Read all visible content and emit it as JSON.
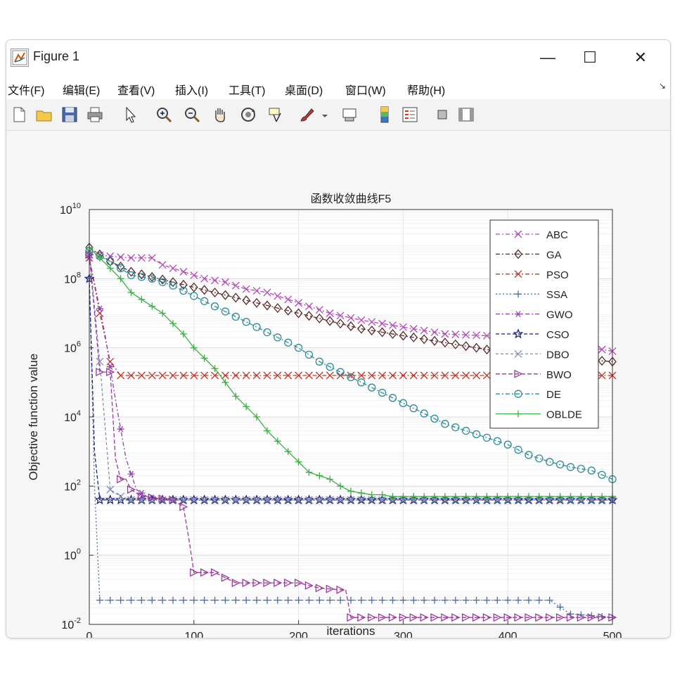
{
  "window": {
    "title": "Figure 1",
    "controls": {
      "minimize": "—",
      "maximize": "☐",
      "close": "✕"
    }
  },
  "menu": [
    {
      "label": "文件(F)"
    },
    {
      "label": "编辑(E)"
    },
    {
      "label": "查看(V)"
    },
    {
      "label": "插入(I)"
    },
    {
      "label": "工具(T)"
    },
    {
      "label": "桌面(D)"
    },
    {
      "label": "窗口(W)"
    },
    {
      "label": "帮助(H)"
    }
  ],
  "toolbar": [
    {
      "icon": "new-figure-icon"
    },
    {
      "icon": "open-file-icon"
    },
    {
      "icon": "save-icon"
    },
    {
      "icon": "print-icon"
    },
    {
      "icon": "pointer-icon"
    },
    {
      "icon": "zoom-in-icon"
    },
    {
      "icon": "zoom-out-icon"
    },
    {
      "icon": "pan-hand-icon"
    },
    {
      "icon": "rotate-3d-icon"
    },
    {
      "icon": "data-cursor-icon"
    },
    {
      "icon": "brush-icon"
    },
    {
      "icon": "link-plot-icon"
    },
    {
      "icon": "colorbar-icon"
    },
    {
      "icon": "legend-icon"
    },
    {
      "icon": "hide-plot-tools-icon"
    },
    {
      "icon": "show-plot-tools-icon"
    }
  ],
  "chart_data": {
    "type": "line",
    "title": "函数收敛曲线F5",
    "xlabel": "iterations",
    "ylabel": "Objective function value",
    "xlim": [
      0,
      500
    ],
    "ylim_log10": [
      -2,
      10
    ],
    "y_scale": "log",
    "xticks": [
      "0",
      "100",
      "200",
      "300",
      "400",
      "500"
    ],
    "yticks": [
      {
        "base": "10",
        "exp": "10"
      },
      {
        "base": "10",
        "exp": "8"
      },
      {
        "base": "10",
        "exp": "6"
      },
      {
        "base": "10",
        "exp": "4"
      },
      {
        "base": "10",
        "exp": "2"
      },
      {
        "base": "10",
        "exp": "0"
      },
      {
        "base": "10",
        "exp": "-2"
      }
    ],
    "grid": true,
    "legend_position": "top-right",
    "series": [
      {
        "name": "ABC",
        "color": "#b24bb6",
        "dash": "6,3,2,3",
        "marker": "x",
        "x": [
          0,
          20,
          40,
          60,
          70,
          90,
          110,
          130,
          150,
          170,
          190,
          210,
          230,
          260,
          300,
          340,
          380,
          420,
          460,
          500
        ],
        "log10": [
          8.7,
          8.65,
          8.6,
          8.6,
          8.4,
          8.2,
          8.0,
          7.9,
          7.7,
          7.6,
          7.4,
          7.2,
          7.0,
          6.8,
          6.6,
          6.4,
          6.35,
          6.3,
          6.1,
          5.9
        ]
      },
      {
        "name": "GA",
        "color": "#5a2a2a",
        "dash": "6,3,2,3",
        "marker": "diamond",
        "x": [
          0,
          20,
          40,
          60,
          80,
          100,
          120,
          140,
          160,
          180,
          200,
          220,
          240,
          260,
          280,
          300,
          320,
          340,
          360,
          380,
          400,
          420,
          440,
          460,
          480,
          500
        ],
        "log10": [
          8.9,
          8.5,
          8.2,
          8.05,
          7.9,
          7.75,
          7.6,
          7.45,
          7.3,
          7.15,
          7.0,
          6.85,
          6.7,
          6.55,
          6.45,
          6.35,
          6.25,
          6.15,
          6.05,
          5.95,
          5.85,
          5.8,
          5.75,
          5.7,
          5.65,
          5.6
        ]
      },
      {
        "name": "PSO",
        "color": "#c0392b",
        "dash": "6,3,2,3",
        "marker": "x",
        "x": [
          0,
          10,
          20,
          30,
          100,
          200,
          300,
          400,
          500
        ],
        "log10": [
          8.6,
          7.0,
          5.6,
          5.2,
          5.2,
          5.2,
          5.2,
          5.2,
          5.2
        ]
      },
      {
        "name": "SSA",
        "color": "#4a6fa5",
        "dash": "2,3",
        "marker": "plus",
        "x": [
          0,
          5,
          10,
          100,
          200,
          300,
          400,
          440,
          460,
          500
        ],
        "log10": [
          8.0,
          2.0,
          -1.3,
          -1.3,
          -1.3,
          -1.3,
          -1.3,
          -1.3,
          -1.7,
          -1.8
        ]
      },
      {
        "name": "GWO",
        "color": "#8e44ad",
        "dash": "6,3,2,3",
        "marker": "star6",
        "x": [
          0,
          15,
          25,
          35,
          45,
          55,
          70,
          100,
          200,
          300,
          400,
          500
        ],
        "log10": [
          8.6,
          6.4,
          4.5,
          2.8,
          1.9,
          1.7,
          1.6,
          1.6,
          1.6,
          1.6,
          1.6,
          1.6
        ]
      },
      {
        "name": "CSO",
        "color": "#1a237e",
        "dash": "5,3",
        "marker": "star5",
        "x": [
          0,
          5,
          10,
          20,
          100,
          200,
          300,
          400,
          500
        ],
        "log10": [
          8.0,
          3.0,
          1.6,
          1.6,
          1.6,
          1.6,
          1.6,
          1.6,
          1.6
        ]
      },
      {
        "name": "DBO",
        "color": "#7f8fb3",
        "dash": "4,3",
        "marker": "x",
        "x": [
          0,
          10,
          20,
          30,
          40,
          100,
          200,
          300,
          400,
          500
        ],
        "log10": [
          8.8,
          5.6,
          1.9,
          1.7,
          1.6,
          1.6,
          1.6,
          1.6,
          1.6,
          1.6
        ]
      },
      {
        "name": "BWO",
        "color": "#9b3a9b",
        "dash": "6,3",
        "marker": "triangle-right",
        "x": [
          0,
          10,
          20,
          25,
          30,
          35,
          40,
          50,
          80,
          90,
          95,
          100,
          110,
          120,
          140,
          160,
          180,
          200,
          220,
          240,
          245,
          250,
          300,
          400,
          500
        ],
        "log10": [
          8.7,
          5.3,
          5.3,
          2.8,
          2.2,
          2.2,
          1.9,
          1.7,
          1.6,
          1.4,
          0.5,
          -0.5,
          -0.5,
          -0.5,
          -0.8,
          -0.8,
          -0.8,
          -0.8,
          -0.95,
          -1.0,
          -1.0,
          -1.8,
          -1.8,
          -1.8,
          -1.8
        ]
      },
      {
        "name": "DE",
        "color": "#2e8b9a",
        "dash": "6,3,2,3",
        "marker": "circle",
        "x": [
          0,
          20,
          40,
          60,
          80,
          100,
          120,
          140,
          160,
          180,
          200,
          220,
          240,
          260,
          280,
          300,
          320,
          340,
          360,
          380,
          400,
          420,
          440,
          460,
          480,
          500
        ],
        "log10": [
          8.8,
          8.5,
          8.1,
          8.0,
          7.8,
          7.5,
          7.2,
          6.9,
          6.6,
          6.3,
          6.0,
          5.6,
          5.3,
          5.0,
          4.7,
          4.4,
          4.1,
          3.8,
          3.6,
          3.4,
          3.2,
          2.9,
          2.7,
          2.55,
          2.45,
          2.2
        ]
      },
      {
        "name": "OBLDE",
        "color": "#3cb043",
        "dash": "",
        "marker": "plus",
        "x": [
          0,
          10,
          20,
          30,
          40,
          50,
          60,
          70,
          80,
          90,
          100,
          110,
          120,
          130,
          140,
          150,
          160,
          170,
          180,
          190,
          200,
          210,
          220,
          230,
          240,
          250,
          260,
          270,
          280,
          290,
          300,
          320,
          340,
          360,
          380,
          400,
          420,
          440,
          460,
          480,
          500
        ],
        "log10": [
          8.9,
          8.6,
          8.3,
          8.0,
          7.6,
          7.4,
          7.2,
          7.0,
          6.7,
          6.4,
          6.0,
          5.7,
          5.4,
          5.0,
          4.6,
          4.3,
          4.0,
          3.6,
          3.3,
          3.0,
          2.7,
          2.4,
          2.3,
          2.2,
          2.0,
          1.85,
          1.8,
          1.75,
          1.75,
          1.7,
          1.7,
          1.7,
          1.7,
          1.7,
          1.7,
          1.7,
          1.7,
          1.7,
          1.7,
          1.7,
          1.7
        ]
      }
    ]
  }
}
